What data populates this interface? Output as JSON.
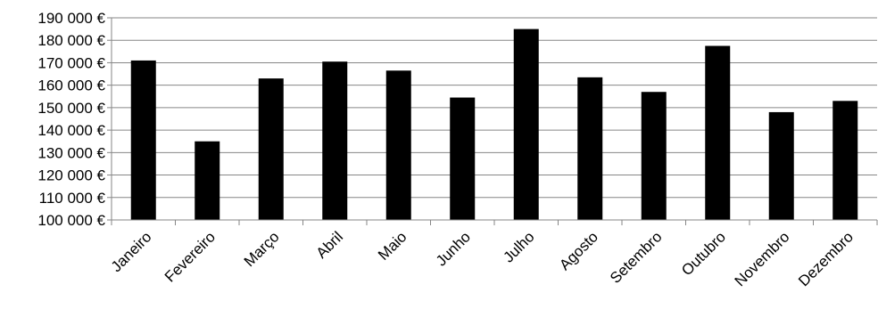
{
  "chart_data": {
    "type": "bar",
    "title": "",
    "xlabel": "",
    "ylabel": "",
    "categories": [
      "Janeiro",
      "Fevereiro",
      "Março",
      "Abril",
      "Maio",
      "Junho",
      "Julho",
      "Agosto",
      "Setembro",
      "Outubro",
      "Novembro",
      "Dezembro"
    ],
    "values": [
      171000,
      135000,
      163000,
      170500,
      166500,
      154500,
      185000,
      163500,
      157000,
      177500,
      148000,
      153000
    ],
    "ylim": [
      100000,
      190000
    ],
    "yticks": [
      100000,
      110000,
      120000,
      130000,
      140000,
      150000,
      160000,
      170000,
      180000,
      190000
    ],
    "ytick_labels": [
      "100 000 €",
      "110 000 €",
      "120 000 €",
      "130 000 €",
      "140 000 €",
      "150 000 €",
      "160 000 €",
      "170 000 €",
      "180 000 €",
      "190 000 €"
    ],
    "grid": true,
    "legend": "none",
    "bar_color": "#000000",
    "grid_color": "#868686"
  }
}
